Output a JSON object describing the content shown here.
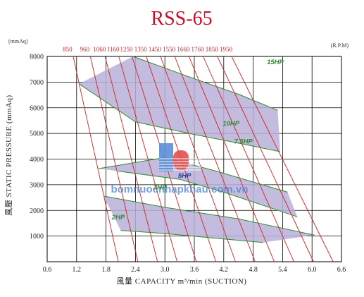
{
  "chart_data": {
    "type": "line",
    "title": "RSS-65",
    "xlabel": "風量 CAPACITY m³/min (SUCTION)",
    "ylabel": "風壓 STATIC PRESSURE (mmAq)",
    "y_unit": "(mmAq)",
    "rpm_unit": "(R.P.M)",
    "xlim": [
      0.6,
      6.6
    ],
    "ylim": [
      0,
      8000
    ],
    "x_ticks": [
      "0.6",
      "1.2",
      "1.8",
      "2.4",
      "3.0",
      "3.6",
      "4.2",
      "4.8",
      "5.4",
      "6.0",
      "6.6"
    ],
    "y_ticks": [
      "1000",
      "2000",
      "3000",
      "4000",
      "5000",
      "6000",
      "7000",
      "8000"
    ],
    "grid": true,
    "rpm_ticks": [
      "850",
      "960",
      "1060",
      "1160",
      "1250",
      "1350",
      "1450",
      "1550",
      "1660",
      "1760",
      "1850",
      "1950"
    ],
    "rpm_lines": [
      {
        "x_top": 1.13,
        "x_bottom": 2.05
      },
      {
        "x_top": 1.48,
        "x_bottom": 2.45
      },
      {
        "x_top": 1.78,
        "x_bottom": 2.85
      },
      {
        "x_top": 2.06,
        "x_bottom": 3.25
      },
      {
        "x_top": 2.33,
        "x_bottom": 3.64
      },
      {
        "x_top": 2.62,
        "x_bottom": 4.04
      },
      {
        "x_top": 2.91,
        "x_bottom": 4.44
      },
      {
        "x_top": 3.2,
        "x_bottom": 4.84
      },
      {
        "x_top": 3.49,
        "x_bottom": 5.23
      },
      {
        "x_top": 3.78,
        "x_bottom": 5.63
      },
      {
        "x_top": 4.07,
        "x_bottom": 6.03
      },
      {
        "x_top": 4.36,
        "x_bottom": 6.43
      }
    ],
    "series": [
      {
        "name": "15HP",
        "values": [
          [
            2.35,
            8000
          ],
          [
            3.6,
            7130
          ],
          [
            4.5,
            6530
          ],
          [
            5.3,
            5900
          ]
        ]
      },
      {
        "name": "10HP",
        "values": [
          [
            1.25,
            6930
          ],
          [
            2.4,
            5450
          ],
          [
            3.6,
            4960
          ],
          [
            4.5,
            4620
          ],
          [
            5.35,
            4290
          ]
        ]
      },
      {
        "name": "7.5HP",
        "values": [
          [
            1.65,
            3630
          ],
          [
            3.0,
            4060
          ],
          [
            4.05,
            3530
          ],
          [
            5.5,
            2710
          ]
        ]
      },
      {
        "name": "5HP",
        "values": [
          [
            2.05,
            3530
          ],
          [
            3.3,
            3210
          ],
          [
            4.2,
            2710
          ],
          [
            5.7,
            1750
          ]
        ]
      },
      {
        "name": "3HP",
        "values": [
          [
            1.75,
            2560
          ],
          [
            3.0,
            2120
          ],
          [
            4.5,
            1670
          ],
          [
            6.05,
            1040
          ]
        ]
      },
      {
        "name": "2HP",
        "values": [
          [
            2.1,
            1220
          ],
          [
            3.0,
            1100
          ],
          [
            4.0,
            920
          ],
          [
            5.0,
            750
          ]
        ]
      }
    ],
    "band_colors": {
      "fill": "#b9b0d8",
      "curve": "#2e8b2e",
      "rpm": "#d42020",
      "grid": "#000000"
    }
  },
  "watermark": "bomnuocnhapkhau.com.vn",
  "logo": "LP"
}
